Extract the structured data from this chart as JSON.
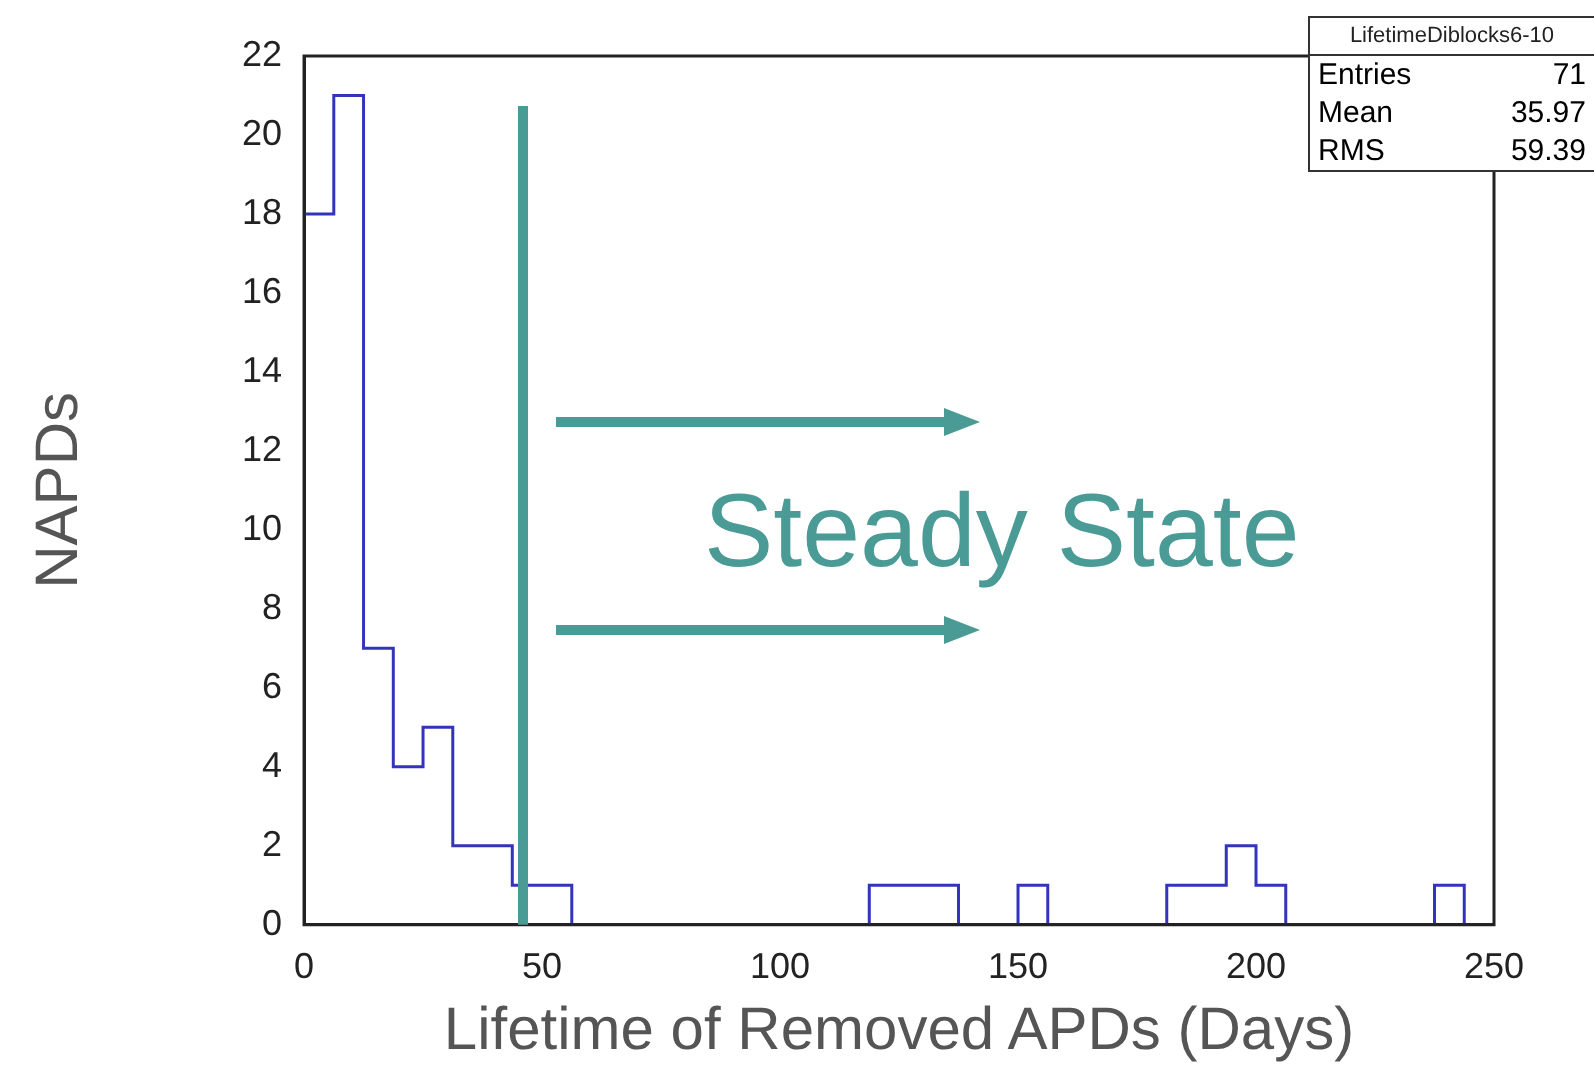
{
  "chart_data": {
    "type": "histogram",
    "xlabel": "Lifetime of Removed APDs (Days)",
    "ylabel": "NAPDs",
    "bins": [
      0,
      6.25,
      12.5,
      18.75,
      25,
      31.25,
      37.5,
      43.75,
      50,
      56.25,
      62.5,
      68.75,
      75,
      81.25,
      87.5,
      93.75,
      100,
      106.25,
      112.5,
      118.75,
      125,
      131.25,
      137.5,
      143.75,
      150,
      156.25,
      162.5,
      168.75,
      175,
      181.25,
      187.5,
      193.75,
      200,
      206.25,
      212.5,
      218.75,
      225,
      231.25,
      237.5,
      243.75,
      250
    ],
    "values": [
      18,
      21,
      7,
      4,
      5,
      2,
      2,
      1,
      1,
      0,
      0,
      0,
      0,
      0,
      0,
      0,
      0,
      0,
      0,
      1,
      1,
      1,
      0,
      0,
      1,
      0,
      0,
      0,
      0,
      1,
      1,
      2,
      1,
      0,
      0,
      0,
      0,
      0,
      1,
      0
    ],
    "color": "#3333bb",
    "xlim": [
      0,
      250
    ],
    "xticks": [
      0,
      50,
      100,
      150,
      200,
      250
    ],
    "ylim": [
      0,
      22
    ],
    "yticks": [
      0,
      2,
      4,
      6,
      8,
      10,
      12,
      14,
      16,
      18,
      20,
      22
    ],
    "grid": false,
    "legend": false,
    "ref_lines": [
      {
        "axis": "x",
        "value": 46,
        "color": "#4a9a96"
      }
    ],
    "annotations": [
      "Steady State",
      "LifetimeDiblocks6-10",
      "Entries 71",
      "Mean 35.97",
      "RMS 59.39"
    ]
  }
}
